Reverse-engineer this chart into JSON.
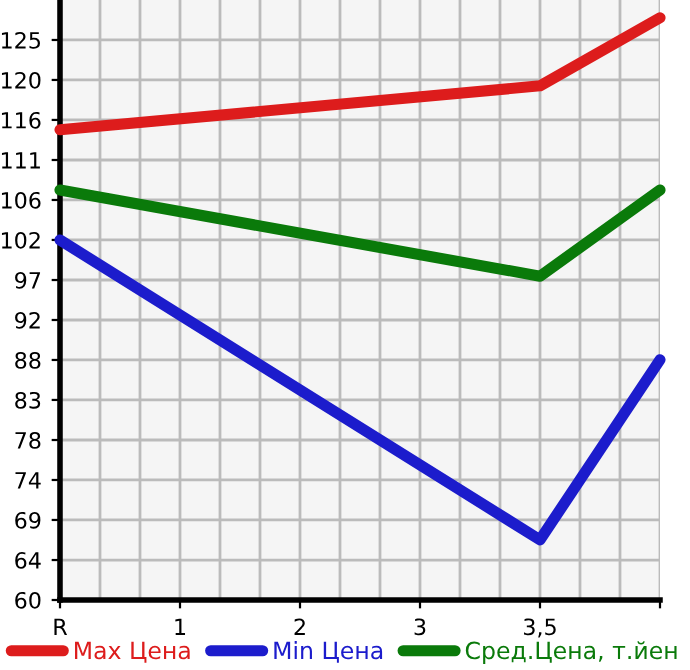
{
  "chart_data": {
    "type": "line",
    "categories": [
      "R",
      "1",
      "2",
      "3",
      "3,5",
      null
    ],
    "series": [
      {
        "name": "Max Цена",
        "color": "#dd1c1c",
        "values": [
          114.4,
          null,
          null,
          null,
          119.5,
          127.4
        ]
      },
      {
        "name": "Min Цена",
        "color": "#1c1ccc",
        "values": [
          101.6,
          null,
          null,
          null,
          66.8,
          87.7
        ]
      },
      {
        "name": "Сред.Цена, т.йен",
        "color": "#0a7a0a",
        "values": [
          107.4,
          null,
          null,
          null,
          97.4,
          107.4
        ]
      }
    ],
    "ylim": [
      59.82,
      129.46
    ],
    "yticks": [
      {
        "value": 59.82,
        "label": "60"
      },
      {
        "value": 64.46,
        "label": "64"
      },
      {
        "value": 69.11,
        "label": "69"
      },
      {
        "value": 73.75,
        "label": "74"
      },
      {
        "value": 78.39,
        "label": "78"
      },
      {
        "value": 83.04,
        "label": "83"
      },
      {
        "value": 87.68,
        "label": "88"
      },
      {
        "value": 92.32,
        "label": "92"
      },
      {
        "value": 96.96,
        "label": "97"
      },
      {
        "value": 101.61,
        "label": "102"
      },
      {
        "value": 106.25,
        "label": "106"
      },
      {
        "value": 110.89,
        "label": "111"
      },
      {
        "value": 115.54,
        "label": "116"
      },
      {
        "value": 120.18,
        "label": "120"
      },
      {
        "value": 124.82,
        "label": "125"
      }
    ],
    "grid": true,
    "legend": "bottom",
    "marker": "none",
    "line_style": "solid"
  }
}
